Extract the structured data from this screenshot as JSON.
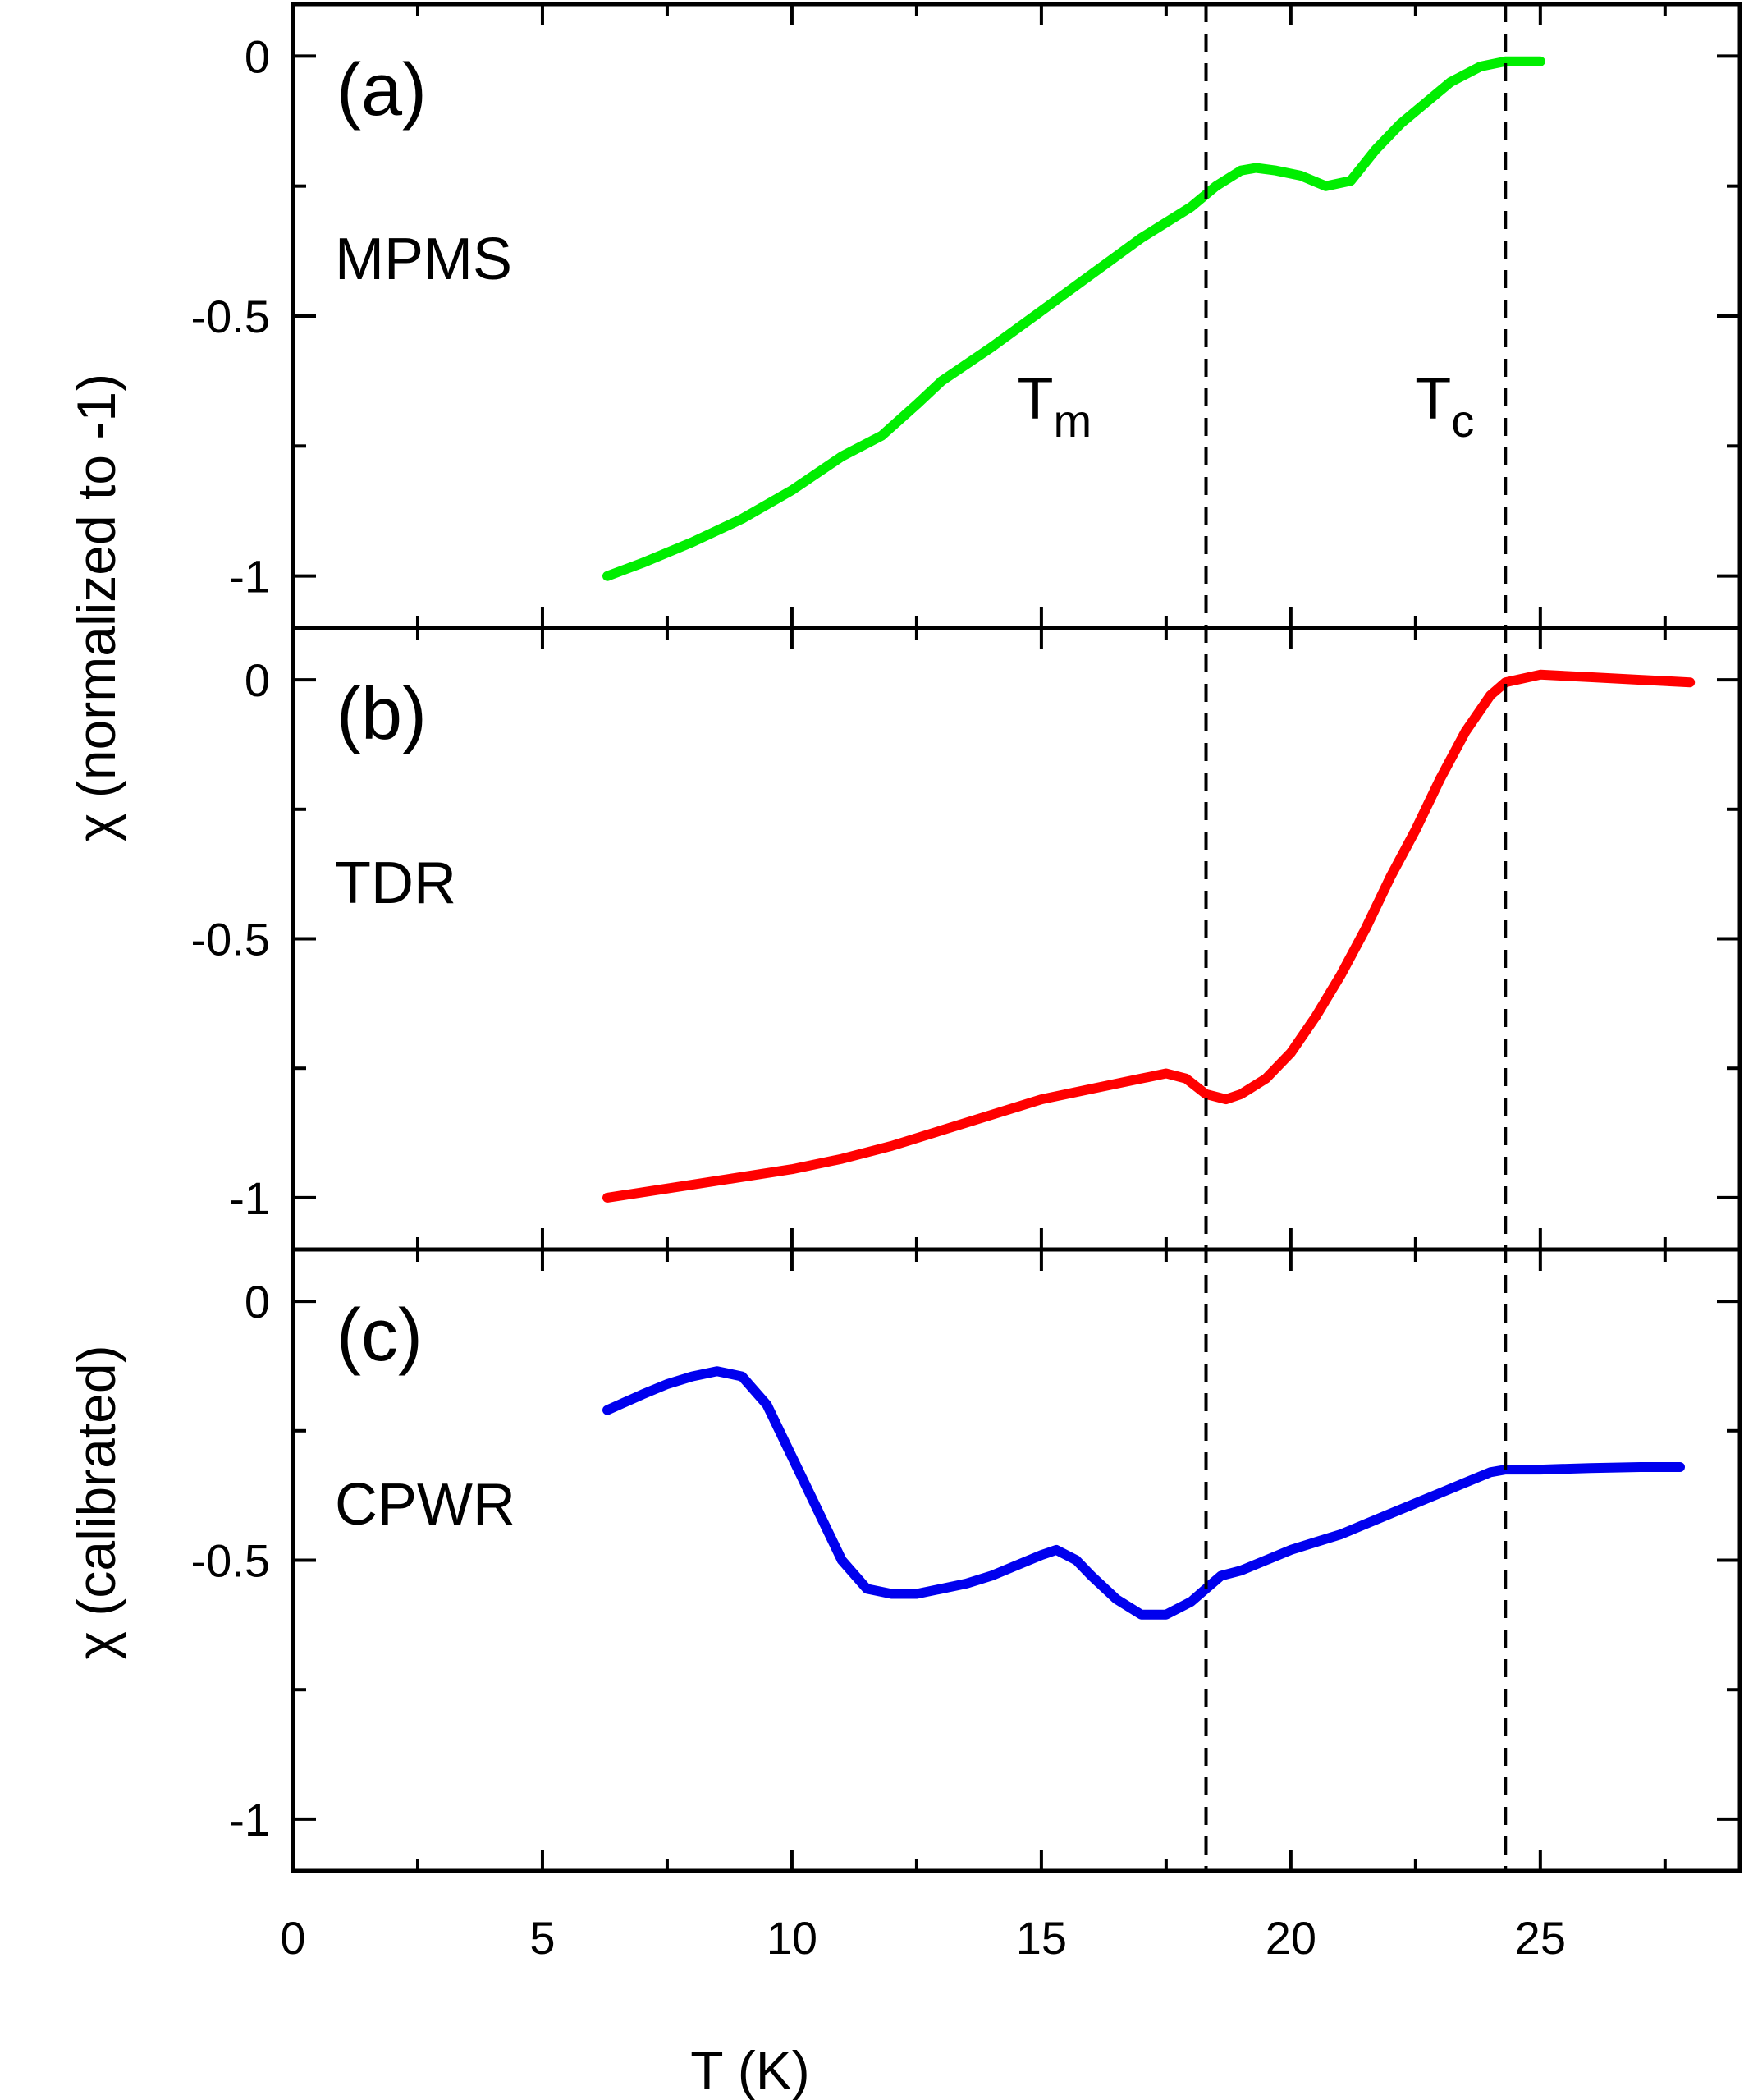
{
  "chart_data": {
    "type": "line",
    "shared_x": {
      "label": "T (K)",
      "range": [
        0,
        29
      ],
      "ticks": [
        0,
        5,
        10,
        15,
        20,
        25
      ],
      "minor_step": 2.5
    },
    "y_axis_title_top": "χ (normalized to -1)",
    "y_axis_title_bottom": "χ (calibrated)",
    "vertical_markers": [
      {
        "name": "Tm",
        "base": "T",
        "sub": "m",
        "x": 18.3
      },
      {
        "name": "Tc",
        "base": "T",
        "sub": "c",
        "x": 24.3
      }
    ],
    "panels": [
      {
        "id": "a",
        "label": "(a)",
        "method": "MPMS",
        "color": "#00ee00",
        "ylim": [
          -1.1,
          0.1
        ],
        "yticks": [
          0,
          -0.5,
          -1
        ],
        "yticklabels": [
          "0",
          "-0.5",
          "-1"
        ],
        "series": {
          "x": [
            6.3,
            7.0,
            8.0,
            9.0,
            10.0,
            11.0,
            11.8,
            12.5,
            13.0,
            14.0,
            15.0,
            16.0,
            17.0,
            17.5,
            18.0,
            18.5,
            19.0,
            19.3,
            19.7,
            20.2,
            20.7,
            21.2,
            21.7,
            22.2,
            22.7,
            23.2,
            23.8,
            24.3,
            25.0
          ],
          "y": [
            -1.0,
            -0.975,
            -0.935,
            -0.89,
            -0.835,
            -0.77,
            -0.73,
            -0.67,
            -0.625,
            -0.56,
            -0.49,
            -0.42,
            -0.35,
            -0.32,
            -0.29,
            -0.25,
            -0.22,
            -0.215,
            -0.22,
            -0.23,
            -0.25,
            -0.24,
            -0.18,
            -0.13,
            -0.09,
            -0.05,
            -0.02,
            -0.01,
            -0.01
          ]
        }
      },
      {
        "id": "b",
        "label": "(b)",
        "method": "TDR",
        "color": "#ff0000",
        "ylim": [
          -1.1,
          0.1
        ],
        "yticks": [
          0,
          -0.5,
          -1
        ],
        "yticklabels": [
          "0",
          "-0.5",
          "-1"
        ],
        "series": {
          "x": [
            6.3,
            8.0,
            10.0,
            11.0,
            12.0,
            13.0,
            14.0,
            15.0,
            16.0,
            17.0,
            17.5,
            17.9,
            18.3,
            18.7,
            19.0,
            19.5,
            20.0,
            20.5,
            21.0,
            21.5,
            22.0,
            22.5,
            23.0,
            23.5,
            24.0,
            24.3,
            25.0,
            26.0,
            27.0,
            28.0
          ],
          "y": [
            -1.0,
            -0.975,
            -0.945,
            -0.925,
            -0.9,
            -0.87,
            -0.84,
            -0.81,
            -0.79,
            -0.77,
            -0.76,
            -0.77,
            -0.8,
            -0.81,
            -0.8,
            -0.77,
            -0.72,
            -0.65,
            -0.57,
            -0.48,
            -0.38,
            -0.29,
            -0.19,
            -0.1,
            -0.03,
            -0.005,
            0.01,
            0.005,
            0.0,
            -0.005
          ]
        }
      },
      {
        "id": "c",
        "label": "(c)",
        "method": "CPWR",
        "color": "#0000ee",
        "ylim": [
          -1.1,
          0.1
        ],
        "yticks": [
          0,
          -0.5,
          -1
        ],
        "yticklabels": [
          "0",
          "-0.5",
          "-1"
        ],
        "series": {
          "x": [
            6.3,
            7.0,
            7.5,
            8.0,
            8.5,
            9.0,
            9.5,
            10.0,
            10.5,
            11.0,
            11.5,
            12.0,
            12.5,
            13.0,
            13.5,
            14.0,
            14.5,
            15.0,
            15.3,
            15.7,
            16.0,
            16.5,
            17.0,
            17.5,
            18.0,
            18.3,
            18.6,
            19.0,
            19.5,
            20.0,
            20.5,
            21.0,
            22.0,
            23.0,
            24.0,
            24.3,
            25.0,
            26.0,
            27.0,
            27.8
          ],
          "y": [
            -0.21,
            -0.18,
            -0.16,
            -0.145,
            -0.135,
            -0.145,
            -0.2,
            -0.3,
            -0.4,
            -0.5,
            -0.555,
            -0.565,
            -0.565,
            -0.555,
            -0.545,
            -0.53,
            -0.51,
            -0.49,
            -0.48,
            -0.5,
            -0.53,
            -0.575,
            -0.605,
            -0.605,
            -0.58,
            -0.555,
            -0.53,
            -0.52,
            -0.5,
            -0.48,
            -0.465,
            -0.45,
            -0.41,
            -0.37,
            -0.33,
            -0.325,
            -0.325,
            -0.322,
            -0.32,
            -0.32
          ]
        }
      }
    ]
  }
}
